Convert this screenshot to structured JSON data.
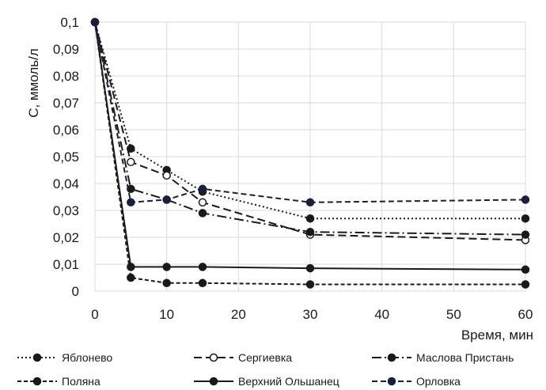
{
  "chart_data": {
    "type": "line",
    "xlabel": "Время, мин",
    "ylabel": "С, ммоль/л",
    "x": [
      0,
      5,
      10,
      15,
      30,
      60
    ],
    "xlim": [
      0,
      60
    ],
    "ylim": [
      0,
      0.1
    ],
    "xticks": [
      0,
      10,
      20,
      30,
      40,
      50,
      60
    ],
    "xtick_labels": [
      "0",
      "10",
      "20",
      "30",
      "40",
      "50",
      "60"
    ],
    "yticks": [
      0,
      0.01,
      0.02,
      0.03,
      0.04,
      0.05,
      0.06,
      0.07,
      0.08,
      0.09,
      0.1
    ],
    "ytick_labels": [
      "0",
      "0,01",
      "0,02",
      "0,03",
      "0,04",
      "0,05",
      "0,06",
      "0,07",
      "0,08",
      "0,09",
      "0,1"
    ],
    "grid": true,
    "legend_position": "bottom",
    "series": [
      {
        "name": "Яблонево",
        "values": [
          0.1,
          0.053,
          0.045,
          0.037,
          0.027,
          0.027
        ],
        "dash": "2,3",
        "marker": "filled",
        "color": "#1a1a1a"
      },
      {
        "name": "Сергиевка",
        "values": [
          0.1,
          0.048,
          0.043,
          0.033,
          0.021,
          0.019
        ],
        "dash": "10,5",
        "marker": "open",
        "color": "#1a1a1a"
      },
      {
        "name": "Маслова Пристань",
        "values": [
          0.1,
          0.038,
          0.034,
          0.029,
          0.022,
          0.021
        ],
        "dash": "12,4,2,4",
        "marker": "filled",
        "color": "#1a1a1a"
      },
      {
        "name": "Поляна",
        "values": [
          0.1,
          0.005,
          0.003,
          0.003,
          0.0025,
          0.0025
        ],
        "dash": "5,3",
        "marker": "filled",
        "color": "#1a1a1a"
      },
      {
        "name": "Верхний Ольшанец",
        "values": [
          0.1,
          0.009,
          0.009,
          0.009,
          0.0085,
          0.008
        ],
        "dash": "",
        "marker": "filled",
        "color": "#1a1a1a"
      },
      {
        "name": "Орловка",
        "values": [
          0.1,
          0.033,
          0.034,
          0.038,
          0.033,
          0.034
        ],
        "dash": "7,4",
        "marker": "filled",
        "color": "#1a1f3d"
      }
    ]
  }
}
